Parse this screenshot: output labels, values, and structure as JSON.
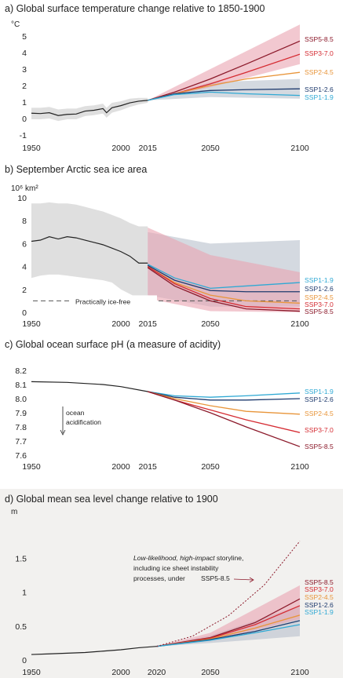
{
  "colors": {
    "ssp119": "#2fa9d4",
    "ssp126": "#1f3b6e",
    "ssp245": "#e8953a",
    "ssp370": "#d52b32",
    "ssp585": "#8c1a2b",
    "hist": "#222222",
    "hist_band": "#d9d9d9",
    "ssp126_band": "#b7bfcc",
    "ssp585_band": "#e9a4b0",
    "panel_d_bg": "#f2f1ef"
  },
  "chart_data": [
    {
      "id": "a",
      "type": "line",
      "title": "a) Global surface temperature change relative to 1850-1900",
      "ylabel": "°C",
      "xlim": [
        1950,
        2100
      ],
      "ylim": [
        -1,
        5
      ],
      "xticks": [
        1950,
        2000,
        2015,
        2050,
        2100
      ],
      "xtick_labels": [
        "1950",
        "2000",
        "2015",
        "2050",
        "2100"
      ],
      "yticks": [
        -1,
        0,
        1,
        2,
        3,
        4,
        5
      ],
      "historical": {
        "x": [
          1950,
          1955,
          1960,
          1965,
          1970,
          1975,
          1980,
          1985,
          1990,
          1992,
          1995,
          2000,
          2005,
          2010,
          2015
        ],
        "y": [
          0.32,
          0.3,
          0.35,
          0.18,
          0.25,
          0.27,
          0.45,
          0.5,
          0.6,
          0.35,
          0.65,
          0.78,
          0.95,
          1.05,
          1.1
        ],
        "band_low": [
          -0.05,
          -0.05,
          0.0,
          -0.15,
          -0.05,
          -0.05,
          0.15,
          0.2,
          0.3,
          0.05,
          0.35,
          0.5,
          0.7,
          0.85,
          0.95
        ],
        "band_high": [
          0.65,
          0.65,
          0.7,
          0.55,
          0.6,
          0.6,
          0.75,
          0.8,
          0.9,
          0.65,
          0.95,
          1.05,
          1.2,
          1.25,
          1.25
        ]
      },
      "series": [
        {
          "name": "SSP5-8.5",
          "color_key": "ssp585",
          "x": [
            2015,
            2030,
            2050,
            2070,
            2100
          ],
          "y": [
            1.1,
            1.6,
            2.4,
            3.3,
            4.7
          ]
        },
        {
          "name": "SSP3-7.0",
          "color_key": "ssp370",
          "x": [
            2015,
            2030,
            2050,
            2070,
            2100
          ],
          "y": [
            1.1,
            1.5,
            2.1,
            2.8,
            3.9
          ]
        },
        {
          "name": "SSP2-4.5",
          "color_key": "ssp245",
          "x": [
            2015,
            2030,
            2050,
            2070,
            2100
          ],
          "y": [
            1.1,
            1.5,
            2.0,
            2.4,
            2.8
          ]
        },
        {
          "name": "SSP1-2.6",
          "color_key": "ssp126",
          "x": [
            2015,
            2030,
            2050,
            2070,
            2100
          ],
          "y": [
            1.1,
            1.5,
            1.7,
            1.75,
            1.8
          ]
        },
        {
          "name": "SSP1-1.9",
          "color_key": "ssp119",
          "x": [
            2015,
            2030,
            2050,
            2070,
            2100
          ],
          "y": [
            1.1,
            1.45,
            1.6,
            1.5,
            1.4
          ]
        }
      ],
      "bands": [
        {
          "color_key": "ssp126_band",
          "x": [
            2015,
            2050,
            2100
          ],
          "low": [
            1.1,
            1.3,
            1.2
          ],
          "high": [
            1.1,
            2.2,
            2.4
          ]
        },
        {
          "color_key": "ssp585_band",
          "x": [
            2015,
            2050,
            2100
          ],
          "low": [
            1.1,
            1.9,
            3.3
          ],
          "high": [
            1.1,
            3.0,
            5.7
          ]
        }
      ]
    },
    {
      "id": "b",
      "type": "line",
      "title": "b) September Arctic sea ice area",
      "ylabel": "10⁶ km²",
      "xlim": [
        1950,
        2100
      ],
      "ylim": [
        0,
        10
      ],
      "xticks": [
        1950,
        2000,
        2015,
        2050,
        2100
      ],
      "xtick_labels": [
        "1950",
        "2000",
        "2015",
        "2050",
        "2100"
      ],
      "yticks": [
        0,
        2,
        4,
        6,
        8,
        10
      ],
      "threshold": {
        "value": 1,
        "label": "Practically ice-free"
      },
      "historical": {
        "x": [
          1950,
          1955,
          1960,
          1965,
          1970,
          1975,
          1980,
          1985,
          1990,
          1995,
          2000,
          2005,
          2010,
          2015
        ],
        "y": [
          6.2,
          6.3,
          6.6,
          6.4,
          6.6,
          6.5,
          6.3,
          6.1,
          5.9,
          5.6,
          5.3,
          4.9,
          4.3,
          4.3
        ],
        "band_low": [
          3.0,
          3.2,
          3.3,
          3.3,
          3.2,
          3.1,
          3.0,
          2.9,
          2.8,
          2.6,
          2.0,
          1.6,
          1.2,
          1.0
        ],
        "band_high": [
          9.5,
          9.5,
          9.6,
          9.5,
          9.5,
          9.4,
          9.2,
          9.0,
          8.8,
          8.5,
          8.2,
          7.8,
          7.5,
          7.5
        ]
      },
      "series": [
        {
          "name": "SSP1-1.9",
          "color_key": "ssp119",
          "x": [
            2015,
            2030,
            2050,
            2070,
            2100
          ],
          "y": [
            4.2,
            3.0,
            2.1,
            2.3,
            2.6
          ]
        },
        {
          "name": "SSP1-2.6",
          "color_key": "ssp126",
          "x": [
            2015,
            2030,
            2050,
            2070,
            2100
          ],
          "y": [
            4.1,
            2.8,
            1.9,
            1.8,
            1.8
          ]
        },
        {
          "name": "SSP2-4.5",
          "color_key": "ssp245",
          "x": [
            2015,
            2030,
            2050,
            2070,
            2100
          ],
          "y": [
            4.0,
            2.6,
            1.5,
            1.0,
            0.8
          ]
        },
        {
          "name": "SSP3-7.0",
          "color_key": "ssp370",
          "x": [
            2015,
            2030,
            2050,
            2070,
            2100
          ],
          "y": [
            4.0,
            2.5,
            1.2,
            0.5,
            0.3
          ]
        },
        {
          "name": "SSP5-8.5",
          "color_key": "ssp585",
          "x": [
            2015,
            2030,
            2050,
            2070,
            2100
          ],
          "y": [
            3.9,
            2.3,
            1.0,
            0.3,
            0.1
          ]
        }
      ],
      "bands": [
        {
          "color_key": "ssp126_band",
          "x": [
            2015,
            2050,
            2100
          ],
          "low": [
            1.5,
            0.5,
            0.5
          ],
          "high": [
            7.0,
            6.0,
            6.3
          ]
        },
        {
          "color_key": "ssp585_band",
          "x": [
            2015,
            2050,
            2100
          ],
          "low": [
            1.2,
            0.1,
            0.0
          ],
          "high": [
            7.4,
            5.0,
            3.5
          ]
        }
      ]
    },
    {
      "id": "c",
      "type": "line",
      "title": "c) Global ocean surface pH (a measure of acidity)",
      "xlim": [
        1950,
        2100
      ],
      "ylim": [
        7.6,
        8.2
      ],
      "xticks": [
        1950,
        2000,
        2015,
        2050,
        2100
      ],
      "xtick_labels": [
        "1950",
        "2000",
        "2015",
        "2050",
        "2100"
      ],
      "yticks": [
        7.6,
        7.7,
        7.8,
        7.9,
        8.0,
        8.1,
        8.2
      ],
      "annotation": [
        "ocean",
        "acidification"
      ],
      "historical": {
        "x": [
          1950,
          1970,
          1990,
          2000,
          2015
        ],
        "y": [
          8.12,
          8.115,
          8.1,
          8.085,
          8.05
        ]
      },
      "series": [
        {
          "name": "SSP1-1.9",
          "color_key": "ssp119",
          "x": [
            2015,
            2030,
            2050,
            2070,
            2100
          ],
          "y": [
            8.05,
            8.02,
            8.01,
            8.02,
            8.04
          ]
        },
        {
          "name": "SSP1-2.6",
          "color_key": "ssp126",
          "x": [
            2015,
            2030,
            2050,
            2070,
            2100
          ],
          "y": [
            8.05,
            8.01,
            7.99,
            7.99,
            8.0
          ]
        },
        {
          "name": "SSP2-4.5",
          "color_key": "ssp245",
          "x": [
            2015,
            2030,
            2050,
            2070,
            2100
          ],
          "y": [
            8.05,
            8.0,
            7.95,
            7.91,
            7.89
          ]
        },
        {
          "name": "SSP3-7.0",
          "color_key": "ssp370",
          "x": [
            2015,
            2030,
            2050,
            2070,
            2100
          ],
          "y": [
            8.05,
            7.99,
            7.92,
            7.85,
            7.76
          ]
        },
        {
          "name": "SSP5-8.5",
          "color_key": "ssp585",
          "x": [
            2015,
            2030,
            2050,
            2070,
            2100
          ],
          "y": [
            8.05,
            7.99,
            7.9,
            7.8,
            7.66
          ]
        }
      ]
    },
    {
      "id": "d",
      "type": "line",
      "title": "d) Global mean sea level change relative to 1900",
      "ylabel": "m",
      "xlim": [
        1950,
        2100
      ],
      "ylim": [
        0,
        2
      ],
      "xticks": [
        1950,
        2000,
        2020,
        2050,
        2100
      ],
      "xtick_labels": [
        "1950",
        "2000",
        "2020",
        "2050",
        "2100"
      ],
      "yticks": [
        0,
        0.5,
        1,
        1.5
      ],
      "ytick_labels": [
        "0",
        "0.5",
        "1",
        "1.5"
      ],
      "storyline": {
        "text_italic": "Low-likelihood, high-impact",
        "text_line1_rest": " storyline,",
        "text_line2": "including ice sheet instability",
        "text_line3": "processes, under",
        "scenario": "SSP5-8.5",
        "x": [
          2020,
          2040,
          2060,
          2080,
          2100
        ],
        "y": [
          0.2,
          0.35,
          0.65,
          1.1,
          1.75
        ]
      },
      "historical": {
        "x": [
          1950,
          1960,
          1970,
          1980,
          1990,
          2000,
          2010,
          2020
        ],
        "y": [
          0.08,
          0.09,
          0.1,
          0.11,
          0.13,
          0.15,
          0.18,
          0.2
        ]
      },
      "series": [
        {
          "name": "SSP5-8.5",
          "color_key": "ssp585",
          "x": [
            2020,
            2050,
            2075,
            2100
          ],
          "y": [
            0.2,
            0.33,
            0.55,
            0.9
          ]
        },
        {
          "name": "SSP3-7.0",
          "color_key": "ssp370",
          "x": [
            2020,
            2050,
            2075,
            2100
          ],
          "y": [
            0.2,
            0.32,
            0.52,
            0.8
          ]
        },
        {
          "name": "SSP2-4.5",
          "color_key": "ssp245",
          "x": [
            2020,
            2050,
            2075,
            2100
          ],
          "y": [
            0.2,
            0.31,
            0.47,
            0.66
          ]
        },
        {
          "name": "SSP1-2.6",
          "color_key": "ssp126",
          "x": [
            2020,
            2050,
            2075,
            2100
          ],
          "y": [
            0.2,
            0.3,
            0.42,
            0.58
          ]
        },
        {
          "name": "SSP1-1.9",
          "color_key": "ssp119",
          "x": [
            2020,
            2050,
            2075,
            2100
          ],
          "y": [
            0.2,
            0.29,
            0.4,
            0.52
          ]
        }
      ],
      "bands": [
        {
          "color_key": "ssp126_band",
          "x": [
            2020,
            2050,
            2100
          ],
          "low": [
            0.2,
            0.25,
            0.35
          ],
          "high": [
            0.2,
            0.36,
            0.8
          ]
        },
        {
          "color_key": "ssp585_band",
          "x": [
            2020,
            2050,
            2100
          ],
          "low": [
            0.2,
            0.28,
            0.6
          ],
          "high": [
            0.2,
            0.4,
            1.1
          ]
        }
      ]
    }
  ]
}
